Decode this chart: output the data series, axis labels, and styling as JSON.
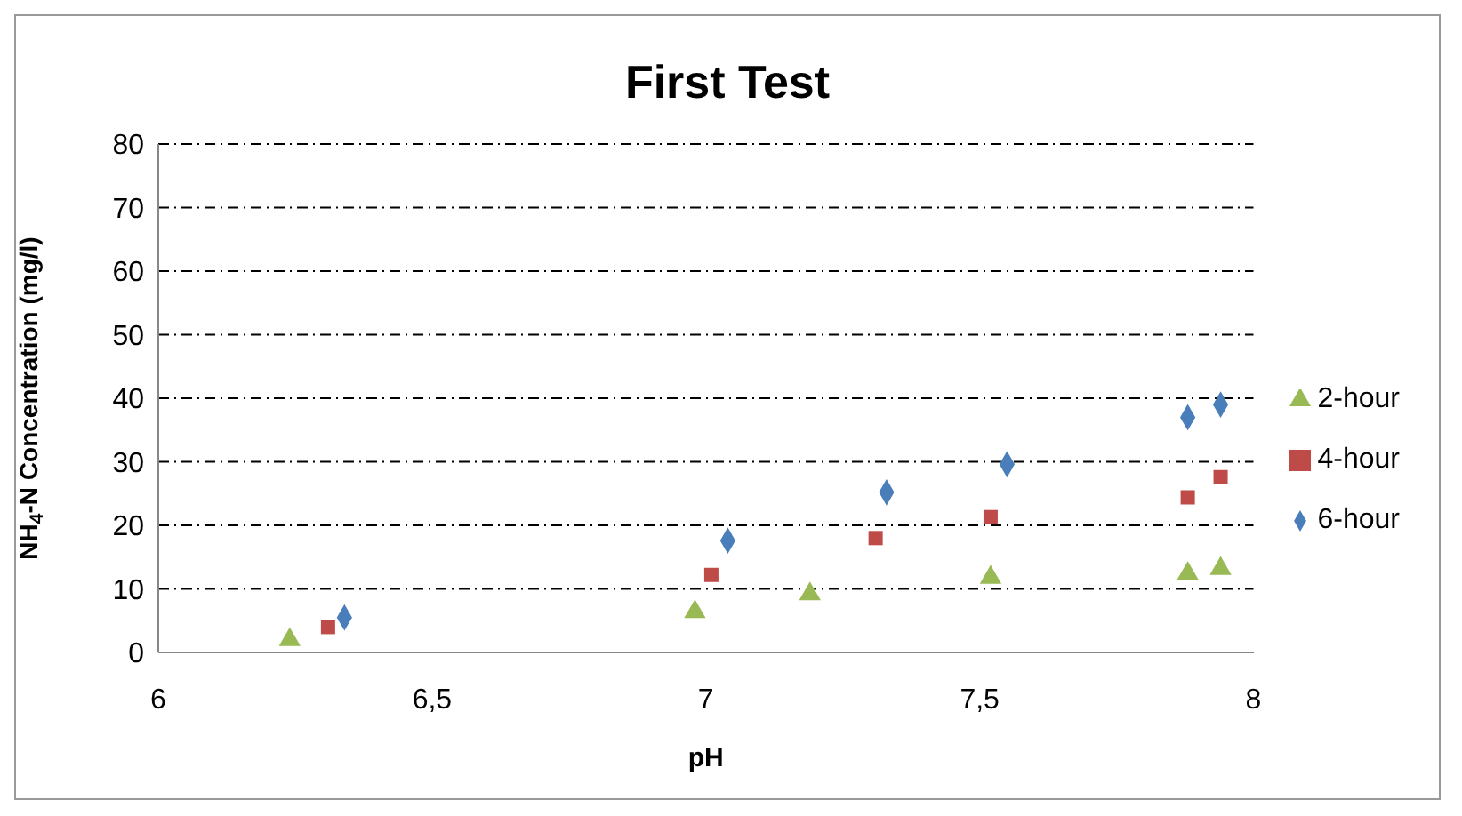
{
  "chart_data": {
    "type": "scatter",
    "title": "First Test",
    "xlabel": "pH",
    "ylabel": "NH$_{4}$-N Concentration (mg/l)",
    "series": [
      {
        "name": "6-hour",
        "color": "#4a7ebb",
        "marker": "diamond",
        "x": [
          6.34,
          7.04,
          7.33,
          7.55,
          7.88,
          7.94
        ],
        "values": [
          5.5,
          17.6,
          25.2,
          29.6,
          37,
          39
        ]
      },
      {
        "name": "4-hour",
        "color": "#be4b48",
        "marker": "square",
        "x": [
          6.31,
          7.01,
          7.31,
          7.52,
          7.88,
          7.94
        ],
        "values": [
          4,
          12.2,
          18,
          21.3,
          24.4,
          27.6
        ]
      },
      {
        "name": "2-hour",
        "color": "#98b954",
        "marker": "triangle",
        "x": [
          6.24,
          6.98,
          7.19,
          7.52,
          7.88,
          7.94
        ],
        "values": [
          2,
          6.4,
          9.2,
          11.8,
          12.4,
          13.2
        ]
      }
    ],
    "xlim": [
      6,
      8
    ],
    "xticks": [
      6,
      {
        "value": 6.5,
        "label": "6,5"
      },
      7,
      {
        "value": 7.5,
        "label": "7,5"
      },
      8
    ],
    "ylim": [
      0,
      80
    ],
    "yticks": [
      0,
      10,
      20,
      30,
      40,
      50,
      60,
      70,
      80
    ],
    "grid": "y",
    "legend": "right"
  }
}
